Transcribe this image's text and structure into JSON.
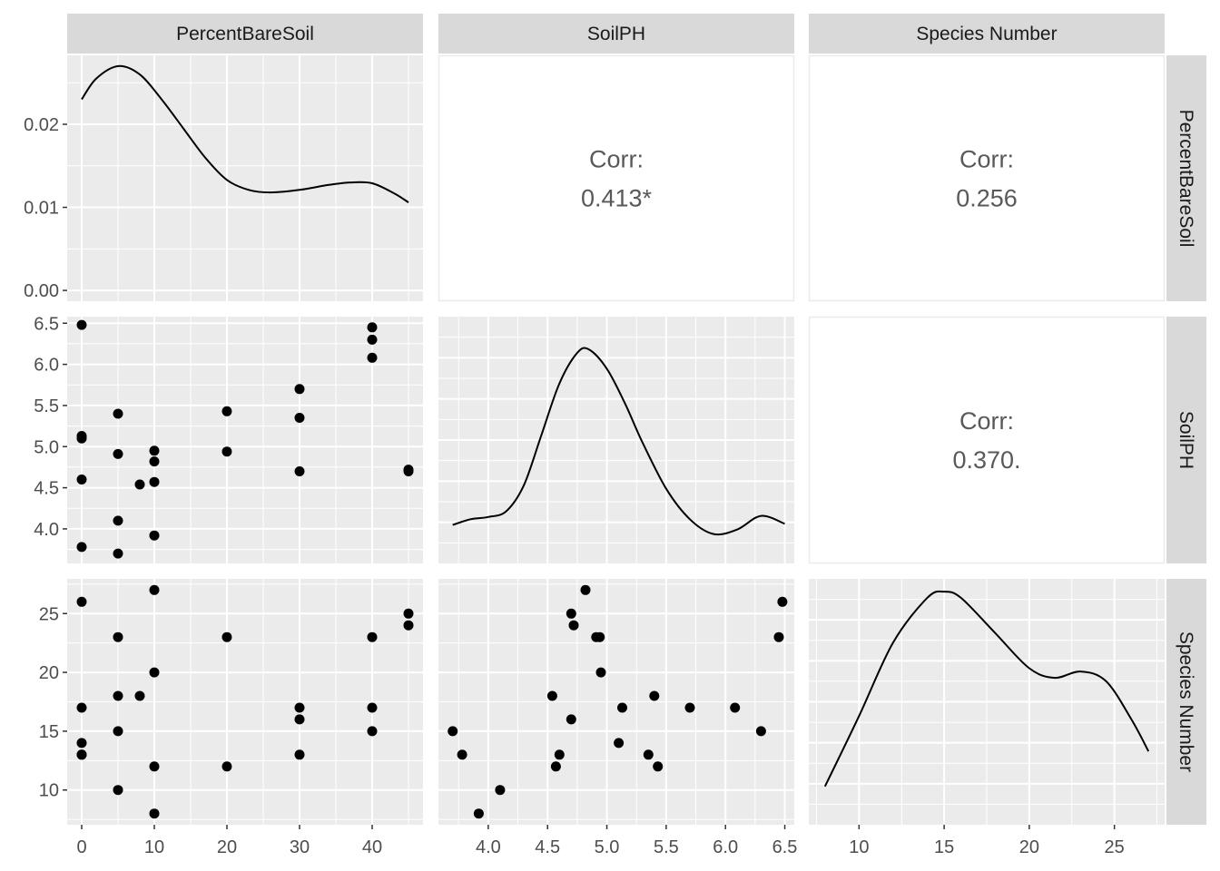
{
  "chart_data": {
    "type": "scatter",
    "layout": "pairs-matrix",
    "variables": [
      "PercentBareSoil",
      "SoilPH",
      "Species Number"
    ],
    "axes": {
      "PercentBareSoil": {
        "range": [
          -2,
          47
        ],
        "ticks": [
          0,
          10,
          20,
          30,
          40
        ],
        "tick_labels": [
          "0",
          "10",
          "20",
          "30",
          "40"
        ]
      },
      "SoilPH": {
        "range": [
          3.58,
          6.58
        ],
        "ticks": [
          3.5,
          4.0,
          4.5,
          5.0,
          5.5,
          6.0,
          6.5
        ],
        "tick_labels": [
          "",
          "4.0",
          "4.5",
          "5.0",
          "5.5",
          "6.0",
          "6.5"
        ]
      },
      "Species Number": {
        "range": [
          7.05,
          27.95
        ],
        "ticks": [
          10,
          15,
          20,
          25
        ],
        "tick_labels": [
          "10",
          "15",
          "20",
          "25"
        ]
      },
      "density_y": {
        "range": [
          -0.0013,
          0.0283
        ],
        "ticks": [
          0.0,
          0.01,
          0.02
        ],
        "tick_labels": [
          "0.00",
          "0.01",
          "0.02"
        ]
      }
    },
    "correlations": [
      {
        "row": "PercentBareSoil",
        "col": "SoilPH",
        "label": "Corr:",
        "value": "0.413*"
      },
      {
        "row": "PercentBareSoil",
        "col": "Species Number",
        "label": "Corr:",
        "value": "0.256"
      },
      {
        "row": "SoilPH",
        "col": "Species Number",
        "label": "Corr:",
        "value": "0.370."
      }
    ],
    "densities": {
      "PercentBareSoil": [
        [
          0,
          0.023
        ],
        [
          2,
          0.0255
        ],
        [
          5,
          0.027
        ],
        [
          8,
          0.026
        ],
        [
          11,
          0.023
        ],
        [
          14,
          0.0195
        ],
        [
          17,
          0.016
        ],
        [
          20,
          0.0133
        ],
        [
          23,
          0.0121
        ],
        [
          26,
          0.0118
        ],
        [
          30,
          0.0121
        ],
        [
          34,
          0.0127
        ],
        [
          37,
          0.013
        ],
        [
          40,
          0.0129
        ],
        [
          43,
          0.0117
        ],
        [
          45,
          0.0106
        ]
      ],
      "SoilPH": [
        [
          3.7,
          0.2
        ],
        [
          3.85,
          0.25
        ],
        [
          4.0,
          0.27
        ],
        [
          4.15,
          0.32
        ],
        [
          4.3,
          0.55
        ],
        [
          4.45,
          1.0
        ],
        [
          4.6,
          1.45
        ],
        [
          4.75,
          1.72
        ],
        [
          4.85,
          1.75
        ],
        [
          5.0,
          1.58
        ],
        [
          5.15,
          1.28
        ],
        [
          5.3,
          0.93
        ],
        [
          5.5,
          0.52
        ],
        [
          5.7,
          0.25
        ],
        [
          5.9,
          0.12
        ],
        [
          6.1,
          0.16
        ],
        [
          6.3,
          0.28
        ],
        [
          6.5,
          0.21
        ]
      ],
      "Species Number": [
        [
          8,
          0.015
        ],
        [
          10,
          0.037
        ],
        [
          12,
          0.06
        ],
        [
          14,
          0.074
        ],
        [
          15,
          0.076
        ],
        [
          16,
          0.074
        ],
        [
          18,
          0.063
        ],
        [
          20,
          0.052
        ],
        [
          21.5,
          0.049
        ],
        [
          23,
          0.051
        ],
        [
          24.5,
          0.048
        ],
        [
          26,
          0.036
        ],
        [
          27,
          0.026
        ]
      ]
    },
    "density_ranges": {
      "SoilPH": [
        -0.14,
        2.04
      ],
      "Species Number": [
        0.003,
        0.08
      ]
    },
    "observations": [
      {
        "PercentBareSoil": 0,
        "SoilPH": 6.48,
        "Species Number": 26
      },
      {
        "PercentBareSoil": 0,
        "SoilPH": 5.13,
        "Species Number": 17
      },
      {
        "PercentBareSoil": 0,
        "SoilPH": 5.1,
        "Species Number": 14
      },
      {
        "PercentBareSoil": 0,
        "SoilPH": 4.6,
        "Species Number": 13
      },
      {
        "PercentBareSoil": 0,
        "SoilPH": 3.78,
        "Species Number": 13
      },
      {
        "PercentBareSoil": 5,
        "SoilPH": 5.4,
        "Species Number": 18
      },
      {
        "PercentBareSoil": 5,
        "SoilPH": 4.91,
        "Species Number": 23
      },
      {
        "PercentBareSoil": 5,
        "SoilPH": 4.1,
        "Species Number": 10
      },
      {
        "PercentBareSoil": 5,
        "SoilPH": 3.7,
        "Species Number": 15
      },
      {
        "PercentBareSoil": 8,
        "SoilPH": 4.54,
        "Species Number": 18
      },
      {
        "PercentBareSoil": 10,
        "SoilPH": 4.95,
        "Species Number": 20
      },
      {
        "PercentBareSoil": 10,
        "SoilPH": 4.82,
        "Species Number": 27
      },
      {
        "PercentBareSoil": 10,
        "SoilPH": 4.57,
        "Species Number": 12
      },
      {
        "PercentBareSoil": 10,
        "SoilPH": 3.92,
        "Species Number": 8
      },
      {
        "PercentBareSoil": 20,
        "SoilPH": 5.43,
        "Species Number": 12
      },
      {
        "PercentBareSoil": 20,
        "SoilPH": 4.94,
        "Species Number": 23
      },
      {
        "PercentBareSoil": 30,
        "SoilPH": 5.7,
        "Species Number": 17
      },
      {
        "PercentBareSoil": 30,
        "SoilPH": 5.35,
        "Species Number": 13
      },
      {
        "PercentBareSoil": 30,
        "SoilPH": 4.7,
        "Species Number": 16
      },
      {
        "PercentBareSoil": 40,
        "SoilPH": 6.45,
        "Species Number": 23
      },
      {
        "PercentBareSoil": 40,
        "SoilPH": 6.3,
        "Species Number": 15
      },
      {
        "PercentBareSoil": 40,
        "SoilPH": 6.08,
        "Species Number": 17
      },
      {
        "PercentBareSoil": 45,
        "SoilPH": 4.72,
        "Species Number": 24
      },
      {
        "PercentBareSoil": 45,
        "SoilPH": 4.7,
        "Species Number": 25
      }
    ],
    "grid": true,
    "legend": "none",
    "colors": {
      "panel_bg": "#ebebeb",
      "strip_bg": "#d9d9d9",
      "gridline": "#ffffff",
      "point": "#000000",
      "line": "#000000",
      "corr_text": "#595959"
    }
  }
}
